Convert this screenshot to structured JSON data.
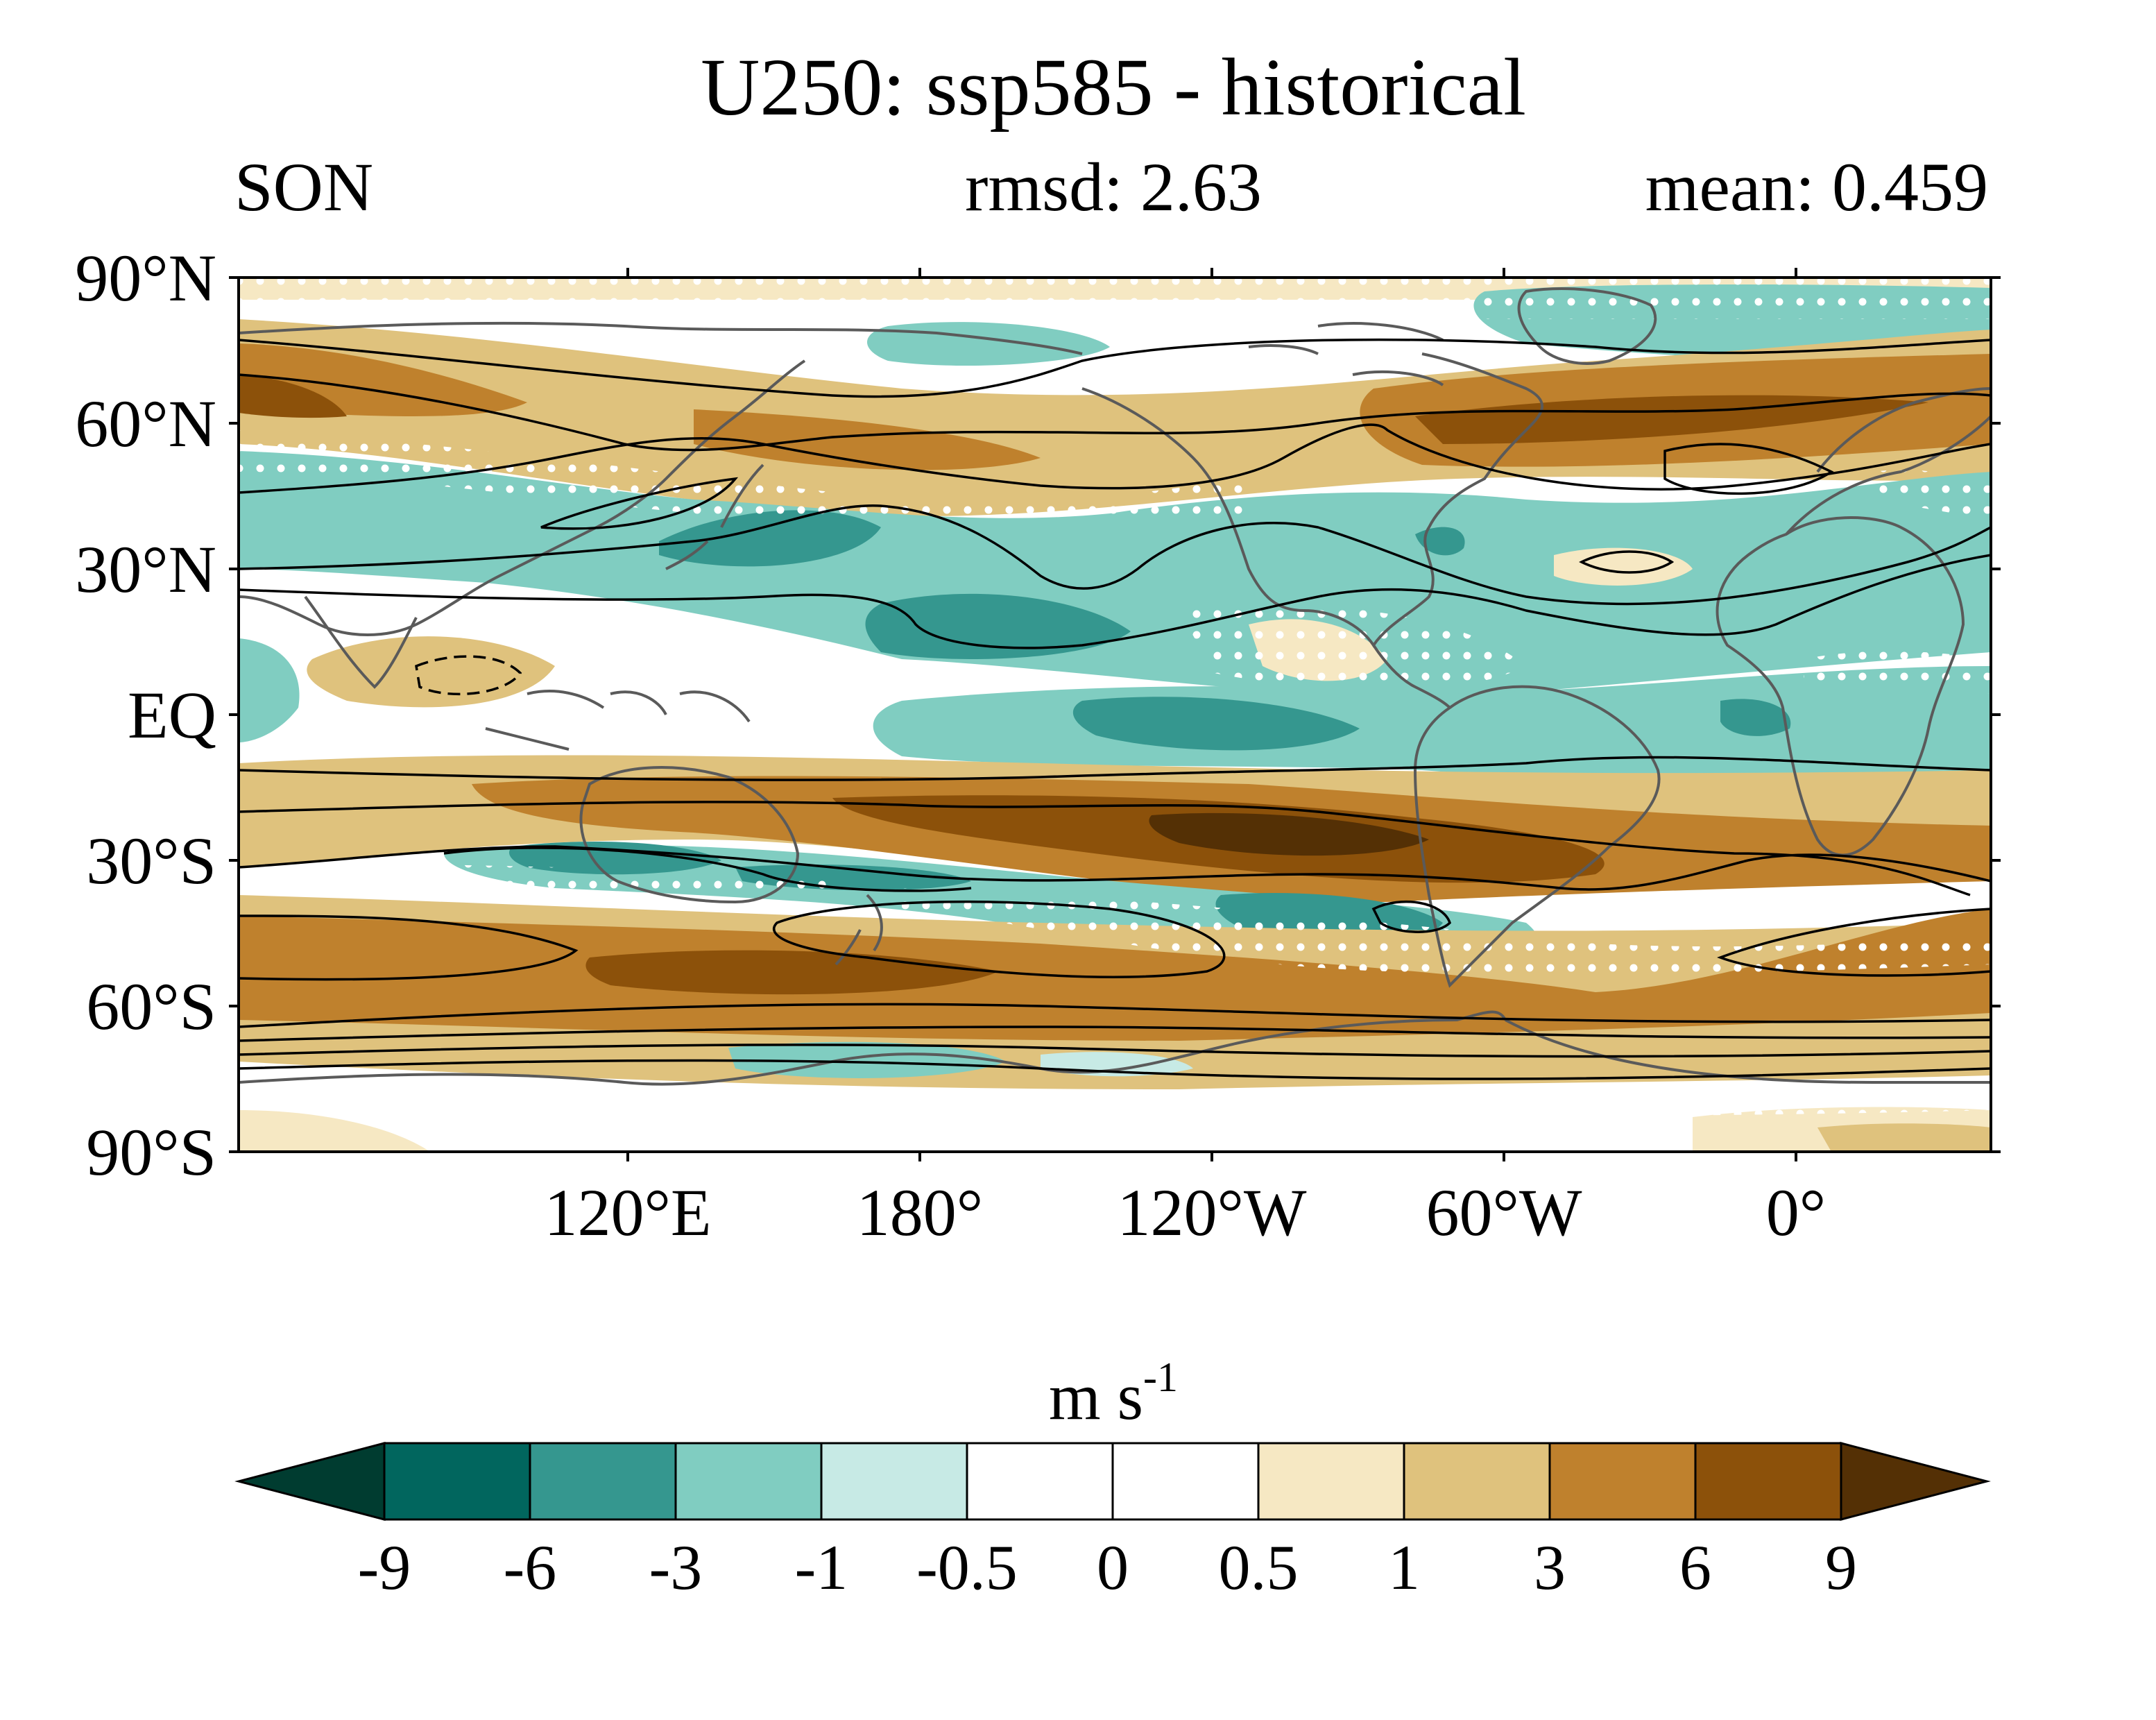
{
  "title": "U250: ssp585 - historical",
  "left_subtitle": "SON",
  "center_subtitle": "rmsd: 2.63",
  "right_subtitle": "mean: 0.459",
  "map": {
    "projection": "cylindrical-equidistant",
    "lon_range": [
      30,
      390
    ],
    "lat_range": [
      -90,
      90
    ],
    "lat_ticks": [
      {
        "value": 90,
        "label": "90°N"
      },
      {
        "value": 60,
        "label": "60°N"
      },
      {
        "value": 30,
        "label": "30°N"
      },
      {
        "value": 0,
        "label": "EQ"
      },
      {
        "value": -30,
        "label": "30°S"
      },
      {
        "value": -60,
        "label": "60°S"
      },
      {
        "value": -90,
        "label": "90°S"
      }
    ],
    "lon_ticks": [
      {
        "value": 120,
        "label": "120°E"
      },
      {
        "value": 180,
        "label": "180°"
      },
      {
        "value": 240,
        "label": "120°W"
      },
      {
        "value": 300,
        "label": "60°W"
      },
      {
        "value": 360,
        "label": "0°"
      }
    ],
    "layers": [
      "filled-contour-anomaly",
      "stippling-significance",
      "coastlines",
      "climatology-contour-lines"
    ]
  },
  "colorbar": {
    "units_base": "m s",
    "units_exp": "-1",
    "levels": [
      "-9",
      "-6",
      "-3",
      "-1",
      "-0.5",
      "0",
      "0.5",
      "1",
      "3",
      "6",
      "9"
    ],
    "colors": [
      "#003c30",
      "#01665e",
      "#35978f",
      "#80cdc1",
      "#c7eae5",
      "#ffffff",
      "#ffffff",
      "#f6e8c3",
      "#dfc27d",
      "#bf812d",
      "#8c510a",
      "#543005"
    ]
  }
}
